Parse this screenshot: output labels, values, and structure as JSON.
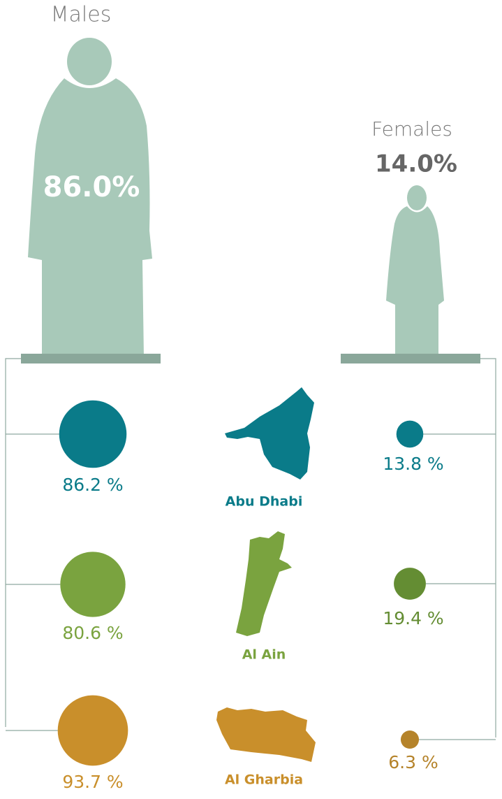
{
  "chart_data": {
    "type": "gender-regions",
    "groups": [
      {
        "name": "Males",
        "value": 86.0,
        "value_label": "86.0%"
      },
      {
        "name": "Females",
        "value": 14.0,
        "value_label": "14.0%"
      }
    ],
    "regions": [
      {
        "name": "Abu Dhabi",
        "colors": [
          "#0a7b89",
          "#0a7b89"
        ],
        "values": [
          86.2,
          13.8
        ],
        "value_labels": [
          "86.2 %",
          "13.8 %"
        ]
      },
      {
        "name": "Al Ain",
        "colors": [
          "#7aa33f",
          "#648d33"
        ],
        "values": [
          80.6,
          19.4
        ],
        "value_labels": [
          "80.6 %",
          "19.4 %"
        ]
      },
      {
        "name": "Al Gharbia",
        "colors": [
          "#c98f2b",
          "#b5832a"
        ],
        "values": [
          93.7,
          6.3
        ],
        "value_labels": [
          "93.7 %",
          "6.3 %"
        ]
      }
    ]
  }
}
